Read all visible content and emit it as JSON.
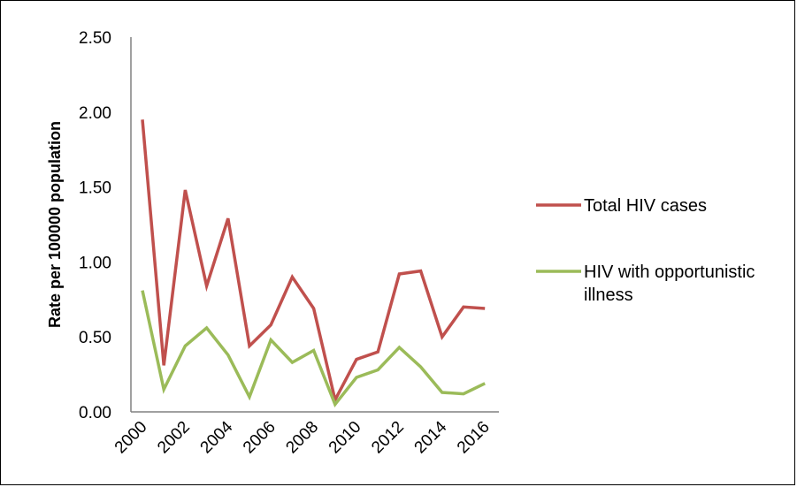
{
  "chart_data": {
    "type": "line",
    "title": "",
    "xlabel": "",
    "ylabel": "Rate per 100000 population",
    "x": [
      2000,
      2001,
      2002,
      2003,
      2004,
      2005,
      2006,
      2007,
      2008,
      2009,
      2010,
      2011,
      2012,
      2013,
      2014,
      2015,
      2016
    ],
    "x_tick_labels": [
      "2000",
      "2002",
      "2004",
      "2006",
      "2008",
      "2010",
      "2012",
      "2014",
      "2016"
    ],
    "y_tick_labels": [
      "0.00",
      "0.50",
      "1.00",
      "1.50",
      "2.00",
      "2.50"
    ],
    "ylim": [
      0,
      2.5
    ],
    "grid": false,
    "legend_position": "right",
    "series": [
      {
        "name": "Total HIV cases",
        "color": "#c0504d",
        "values": [
          1.95,
          0.31,
          1.48,
          0.84,
          1.29,
          0.44,
          0.58,
          0.9,
          0.69,
          0.08,
          0.35,
          0.4,
          0.92,
          0.94,
          0.5,
          0.7,
          0.69
        ]
      },
      {
        "name": "HIV with opportunistic illness",
        "color": "#9bbb59",
        "values": [
          0.81,
          0.15,
          0.44,
          0.56,
          0.38,
          0.1,
          0.48,
          0.33,
          0.41,
          0.05,
          0.23,
          0.28,
          0.43,
          0.3,
          0.13,
          0.12,
          0.19
        ]
      }
    ]
  }
}
